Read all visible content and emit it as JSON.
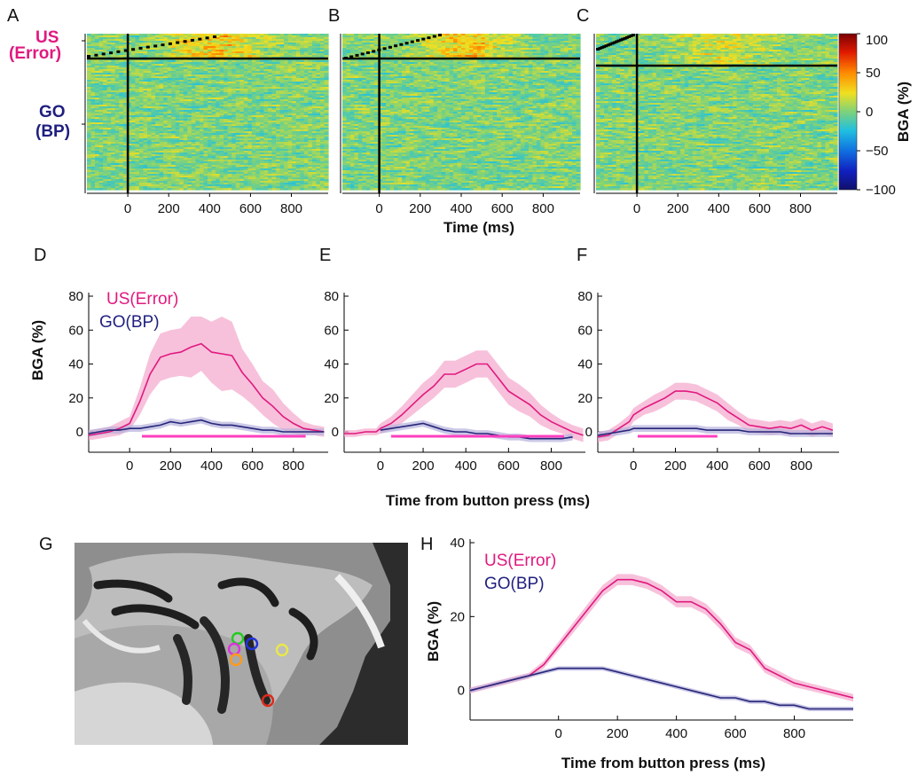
{
  "colors": {
    "us": "#e0197f",
    "us_band": "#f4a6cc",
    "go": "#26267a",
    "go_band": "#b5b0dc",
    "sig_bar": "#ff3fbf"
  },
  "labels": {
    "A": "A",
    "B": "B",
    "C": "C",
    "D": "D",
    "E": "E",
    "F": "F",
    "G": "G",
    "H": "H",
    "us_short": "US",
    "us_paren": "(Error)",
    "go_short": "GO",
    "go_paren": "(BP)",
    "time_ms": "Time (ms)",
    "time_from_bp": "Time from button press (ms)",
    "bga": "BGA (%)",
    "legend_us": "US(Error)",
    "legend_go": "GO(BP)"
  },
  "chart_data": [
    {
      "panel": "A",
      "type": "heatmap",
      "x_ticks": [
        "0",
        "200",
        "400",
        "600",
        "800"
      ],
      "xlim": [
        -200,
        980
      ],
      "clim": [
        -100,
        100
      ]
    },
    {
      "panel": "B",
      "type": "heatmap",
      "x_ticks": [
        "0",
        "200",
        "400",
        "600",
        "800"
      ],
      "xlim": [
        -180,
        980
      ],
      "clim": [
        -100,
        100
      ]
    },
    {
      "panel": "C",
      "type": "heatmap",
      "x_ticks": [
        "0",
        "200",
        "400",
        "600",
        "800"
      ],
      "xlim": [
        -200,
        980
      ],
      "clim": [
        -100,
        100
      ],
      "colorbar": {
        "label": "BGA (%)",
        "ticks": [
          "100",
          "50",
          "0",
          "−50",
          "−100"
        ],
        "values": [
          100,
          50,
          0,
          -50,
          -100
        ]
      }
    },
    {
      "panel": "D",
      "type": "line",
      "xlim": [
        -200,
        970
      ],
      "ylim": [
        -12,
        80
      ],
      "x_ticks": [
        "0",
        "200",
        "400",
        "600",
        "800"
      ],
      "x_tick_values": [
        0,
        200,
        400,
        600,
        800
      ],
      "y_ticks": [
        "0",
        "20",
        "40",
        "60",
        "80"
      ],
      "y_tick_values": [
        0,
        20,
        40,
        60,
        80
      ],
      "x": [
        -200,
        -150,
        -100,
        -50,
        0,
        50,
        100,
        150,
        200,
        250,
        300,
        350,
        400,
        450,
        500,
        550,
        600,
        650,
        700,
        750,
        800,
        850,
        900,
        950
      ],
      "series": [
        {
          "name": "US(Error)",
          "values": [
            -2,
            -1,
            0,
            2,
            5,
            18,
            34,
            44,
            46,
            47,
            50,
            52,
            47,
            46,
            45,
            35,
            28,
            20,
            15,
            9,
            5,
            2,
            1,
            0
          ],
          "err": [
            3,
            3,
            3,
            4,
            4,
            8,
            12,
            14,
            14,
            14,
            18,
            16,
            18,
            22,
            20,
            14,
            12,
            10,
            10,
            8,
            6,
            4,
            3,
            3
          ]
        },
        {
          "name": "GO(BP)",
          "values": [
            -1,
            0,
            1,
            1,
            2,
            2,
            3,
            4,
            6,
            5,
            6,
            7,
            5,
            4,
            4,
            3,
            2,
            1,
            1,
            0,
            0,
            0,
            0,
            0
          ],
          "err": [
            2,
            2,
            2,
            2,
            2,
            2,
            2,
            2,
            2,
            2,
            2,
            2,
            2,
            2,
            2,
            2,
            2,
            2,
            2,
            2,
            2,
            2,
            2,
            2
          ]
        }
      ],
      "significance": [
        60,
        860
      ]
    },
    {
      "panel": "E",
      "type": "line",
      "xlim": [
        -170,
        960
      ],
      "ylim": [
        -12,
        80
      ],
      "x_ticks": [
        "0",
        "200",
        "400",
        "600",
        "800"
      ],
      "x_tick_values": [
        0,
        200,
        400,
        600,
        800
      ],
      "y_ticks": [
        "0",
        "20",
        "40",
        "60",
        "80"
      ],
      "y_tick_values": [
        0,
        20,
        40,
        60,
        80
      ],
      "x": [
        -170,
        -120,
        -70,
        -20,
        0,
        50,
        100,
        150,
        200,
        250,
        300,
        350,
        400,
        450,
        500,
        550,
        600,
        650,
        700,
        750,
        800,
        850,
        900,
        950
      ],
      "series": [
        {
          "name": "US(Error)",
          "values": [
            -1,
            -1,
            0,
            0,
            2,
            5,
            10,
            16,
            22,
            27,
            34,
            34,
            37,
            40,
            40,
            32,
            24,
            20,
            16,
            10,
            6,
            3,
            0,
            -2
          ],
          "err": [
            2,
            2,
            2,
            2,
            3,
            4,
            5,
            6,
            7,
            7,
            8,
            8,
            8,
            8,
            8,
            8,
            8,
            8,
            7,
            6,
            5,
            4,
            4,
            4
          ]
        },
        {
          "name": "GO(BP)",
          "values": [
            null,
            null,
            null,
            null,
            1,
            2,
            3,
            4,
            5,
            3,
            1,
            0,
            0,
            -1,
            -1,
            -2,
            -3,
            -3,
            -4,
            -4,
            -4,
            -4,
            -3,
            null
          ],
          "err": [
            null,
            null,
            null,
            null,
            2,
            2,
            2,
            2,
            2,
            2,
            2,
            2,
            2,
            2,
            2,
            2,
            2,
            2,
            2,
            2,
            2,
            2,
            2,
            null
          ]
        }
      ],
      "significance": [
        50,
        860
      ]
    },
    {
      "panel": "F",
      "type": "line",
      "xlim": [
        -170,
        980
      ],
      "ylim": [
        -12,
        80
      ],
      "x_ticks": [
        "0",
        "200",
        "400",
        "600",
        "800"
      ],
      "x_tick_values": [
        0,
        200,
        400,
        600,
        800
      ],
      "y_ticks": [
        "0",
        "20",
        "40",
        "60",
        "80"
      ],
      "y_tick_values": [
        0,
        20,
        40,
        60,
        80
      ],
      "x": [
        -170,
        -120,
        -70,
        -20,
        0,
        50,
        100,
        150,
        200,
        250,
        300,
        350,
        400,
        450,
        500,
        550,
        600,
        650,
        700,
        750,
        800,
        850,
        900,
        950
      ],
      "series": [
        {
          "name": "US(Error)",
          "values": [
            -3,
            -2,
            2,
            6,
            10,
            14,
            17,
            20,
            24,
            24,
            23,
            20,
            17,
            12,
            8,
            4,
            3,
            2,
            3,
            2,
            4,
            1,
            3,
            1
          ],
          "err": [
            3,
            3,
            3,
            4,
            4,
            4,
            5,
            5,
            5,
            5,
            5,
            5,
            5,
            5,
            4,
            4,
            4,
            4,
            4,
            4,
            4,
            4,
            4,
            4
          ]
        },
        {
          "name": "GO(BP)",
          "values": [
            -2,
            -1,
            0,
            1,
            2,
            2,
            2,
            2,
            2,
            2,
            2,
            1,
            1,
            1,
            1,
            0,
            0,
            0,
            0,
            -1,
            -1,
            -1,
            -1,
            -1
          ],
          "err": [
            2,
            2,
            2,
            2,
            2,
            2,
            2,
            2,
            2,
            2,
            2,
            2,
            2,
            2,
            2,
            2,
            2,
            2,
            2,
            2,
            2,
            2,
            2,
            2
          ]
        }
      ],
      "significance": [
        20,
        400
      ]
    },
    {
      "panel": "H",
      "type": "line",
      "xlim": [
        -300,
        1000
      ],
      "ylim": [
        -8,
        40
      ],
      "x_ticks": [
        "0",
        "200",
        "400",
        "600",
        "800"
      ],
      "x_tick_values": [
        0,
        200,
        400,
        600,
        800
      ],
      "y_ticks": [
        "0",
        "20",
        "40"
      ],
      "y_tick_values": [
        0,
        20,
        40
      ],
      "x": [
        -300,
        -250,
        -200,
        -150,
        -100,
        -50,
        0,
        50,
        100,
        150,
        200,
        250,
        300,
        350,
        400,
        450,
        500,
        550,
        600,
        650,
        700,
        750,
        800,
        850,
        900,
        950,
        1000
      ],
      "series": [
        {
          "name": "US(Error)",
          "values": [
            0,
            1,
            2,
            3,
            4,
            7,
            12,
            17,
            22,
            27,
            30,
            30,
            29,
            27,
            24,
            24,
            22,
            18,
            13,
            11,
            6,
            4,
            2,
            1,
            0,
            -1,
            -2
          ],
          "err": [
            0.8,
            0.8,
            0.8,
            0.8,
            0.8,
            1,
            1.2,
            1.4,
            1.5,
            1.5,
            1.5,
            1.5,
            1.5,
            1.5,
            1.5,
            1.5,
            1.5,
            1.5,
            1.4,
            1.3,
            1.2,
            1.2,
            1.1,
            1,
            1,
            1,
            1
          ]
        },
        {
          "name": "GO(BP)",
          "values": [
            0,
            1,
            2,
            3,
            4,
            5,
            6,
            6,
            6,
            6,
            5,
            4,
            3,
            2,
            1,
            0,
            -1,
            -2,
            -2,
            -3,
            -3,
            -4,
            -4,
            -5,
            -5,
            -5,
            -5
          ],
          "err": [
            0.6,
            0.6,
            0.6,
            0.6,
            0.6,
            0.6,
            0.6,
            0.6,
            0.6,
            0.6,
            0.6,
            0.6,
            0.6,
            0.6,
            0.6,
            0.6,
            0.6,
            0.6,
            0.6,
            0.6,
            0.6,
            0.6,
            0.6,
            0.6,
            0.6,
            0.6,
            0.6
          ]
        }
      ]
    }
  ],
  "brain_markers": [
    {
      "color": "#22cc22",
      "label": "green"
    },
    {
      "color": "#2233dd",
      "label": "blue"
    },
    {
      "color": "#dd33dd",
      "label": "magenta"
    },
    {
      "color": "#ff9a1a",
      "label": "orange"
    },
    {
      "color": "#e8e84a",
      "label": "yellow"
    },
    {
      "color": "#dd2a1a",
      "label": "red"
    }
  ]
}
